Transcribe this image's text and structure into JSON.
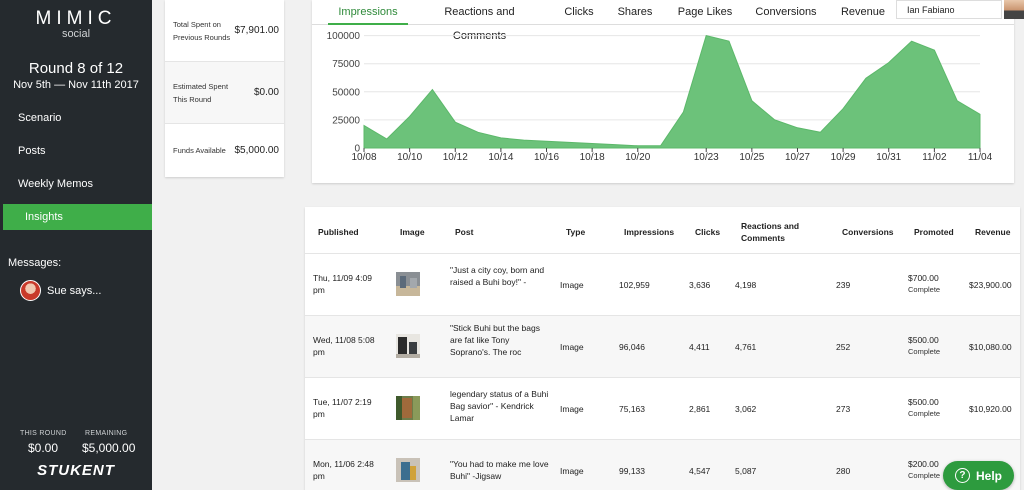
{
  "sidebar": {
    "logo_main": "MIMIC",
    "logo_sub": "social",
    "round": "Round 8 of 12",
    "dates": "Nov 5th — Nov 11th 2017",
    "nav": [
      "Scenario",
      "Posts",
      "Weekly Memos",
      "Insights"
    ],
    "messages_label": "Messages:",
    "message_text": "Sue says...",
    "this_round_label": "THIS ROUND",
    "this_round_value": "$0.00",
    "remaining_label": "REMAINING",
    "remaining_value": "$5,000.00",
    "brand": "STUKENT"
  },
  "stats": [
    {
      "label": "Total Spent on Previous Rounds",
      "value": "$7,901.00"
    },
    {
      "label": "Estimated Spent This Round",
      "value": "$0.00"
    },
    {
      "label": "Funds Available",
      "value": "$5,000.00"
    }
  ],
  "tabs": [
    "Impressions",
    "Reactions and Comments",
    "Clicks",
    "Shares",
    "Page Likes",
    "Conversions",
    "Revenue"
  ],
  "user": {
    "name": "Ian Fabiano"
  },
  "chart_data": {
    "type": "area",
    "color": "#6cc27a",
    "ylim": [
      0,
      105000
    ],
    "yticks": [
      0,
      25000,
      50000,
      75000,
      100000
    ],
    "x_tick_labels": [
      "10/08",
      "10/10",
      "10/12",
      "10/14",
      "10/16",
      "10/18",
      "10/20",
      "10/23",
      "10/25",
      "10/27",
      "10/29",
      "10/31",
      "11/02",
      "11/04"
    ],
    "x_tick_index": [
      0,
      2,
      4,
      6,
      8,
      10,
      12,
      15,
      17,
      19,
      21,
      23,
      25,
      27
    ],
    "values": [
      20000,
      8000,
      28000,
      52000,
      23000,
      14000,
      9000,
      7000,
      6000,
      5000,
      4000,
      3000,
      2000,
      2000,
      32000,
      100000,
      95000,
      42000,
      25000,
      18000,
      14000,
      35000,
      62000,
      76000,
      95000,
      87000,
      42000,
      30000
    ]
  },
  "table": {
    "headers": [
      "Published",
      "Image",
      "Post",
      "Type",
      "Impressions",
      "Clicks",
      "Reactions and Comments",
      "Conversions",
      "Promoted",
      "Revenue"
    ],
    "rows": [
      {
        "published": "Thu, 11/09 4:09 pm",
        "post": "\"Just a city coy, born and raised a Buhi boy!\" -",
        "type": "Image",
        "impressions": "102,959",
        "clicks": "3,636",
        "reactions": "4,198",
        "conversions": "239",
        "promoted": "$700.00",
        "status": "Complete",
        "revenue": "$23,900.00"
      },
      {
        "published": "Wed, 11/08 5:08 pm",
        "post": "\"Stick Buhi but the bags are fat like Tony Soprano's. The roc",
        "type": "Image",
        "impressions": "96,046",
        "clicks": "4,411",
        "reactions": "4,761",
        "conversions": "252",
        "promoted": "$500.00",
        "status": "Complete",
        "revenue": "$10,080.00"
      },
      {
        "published": "Tue, 11/07 2:19 pm",
        "post": "legendary status of a Buhi Bag savior\" - Kendrick Lamar",
        "type": "Image",
        "impressions": "75,163",
        "clicks": "2,861",
        "reactions": "3,062",
        "conversions": "273",
        "promoted": "$500.00",
        "status": "Complete",
        "revenue": "$10,920.00"
      },
      {
        "published": "Mon, 11/06 2:48 pm",
        "post": "\"You had to make me love Buhi\" -Jigsaw",
        "type": "Image",
        "impressions": "99,133",
        "clicks": "4,547",
        "reactions": "5,087",
        "conversions": "280",
        "promoted": "$200.00",
        "status": "Complete",
        "revenue": ""
      }
    ]
  },
  "help_label": "Help"
}
